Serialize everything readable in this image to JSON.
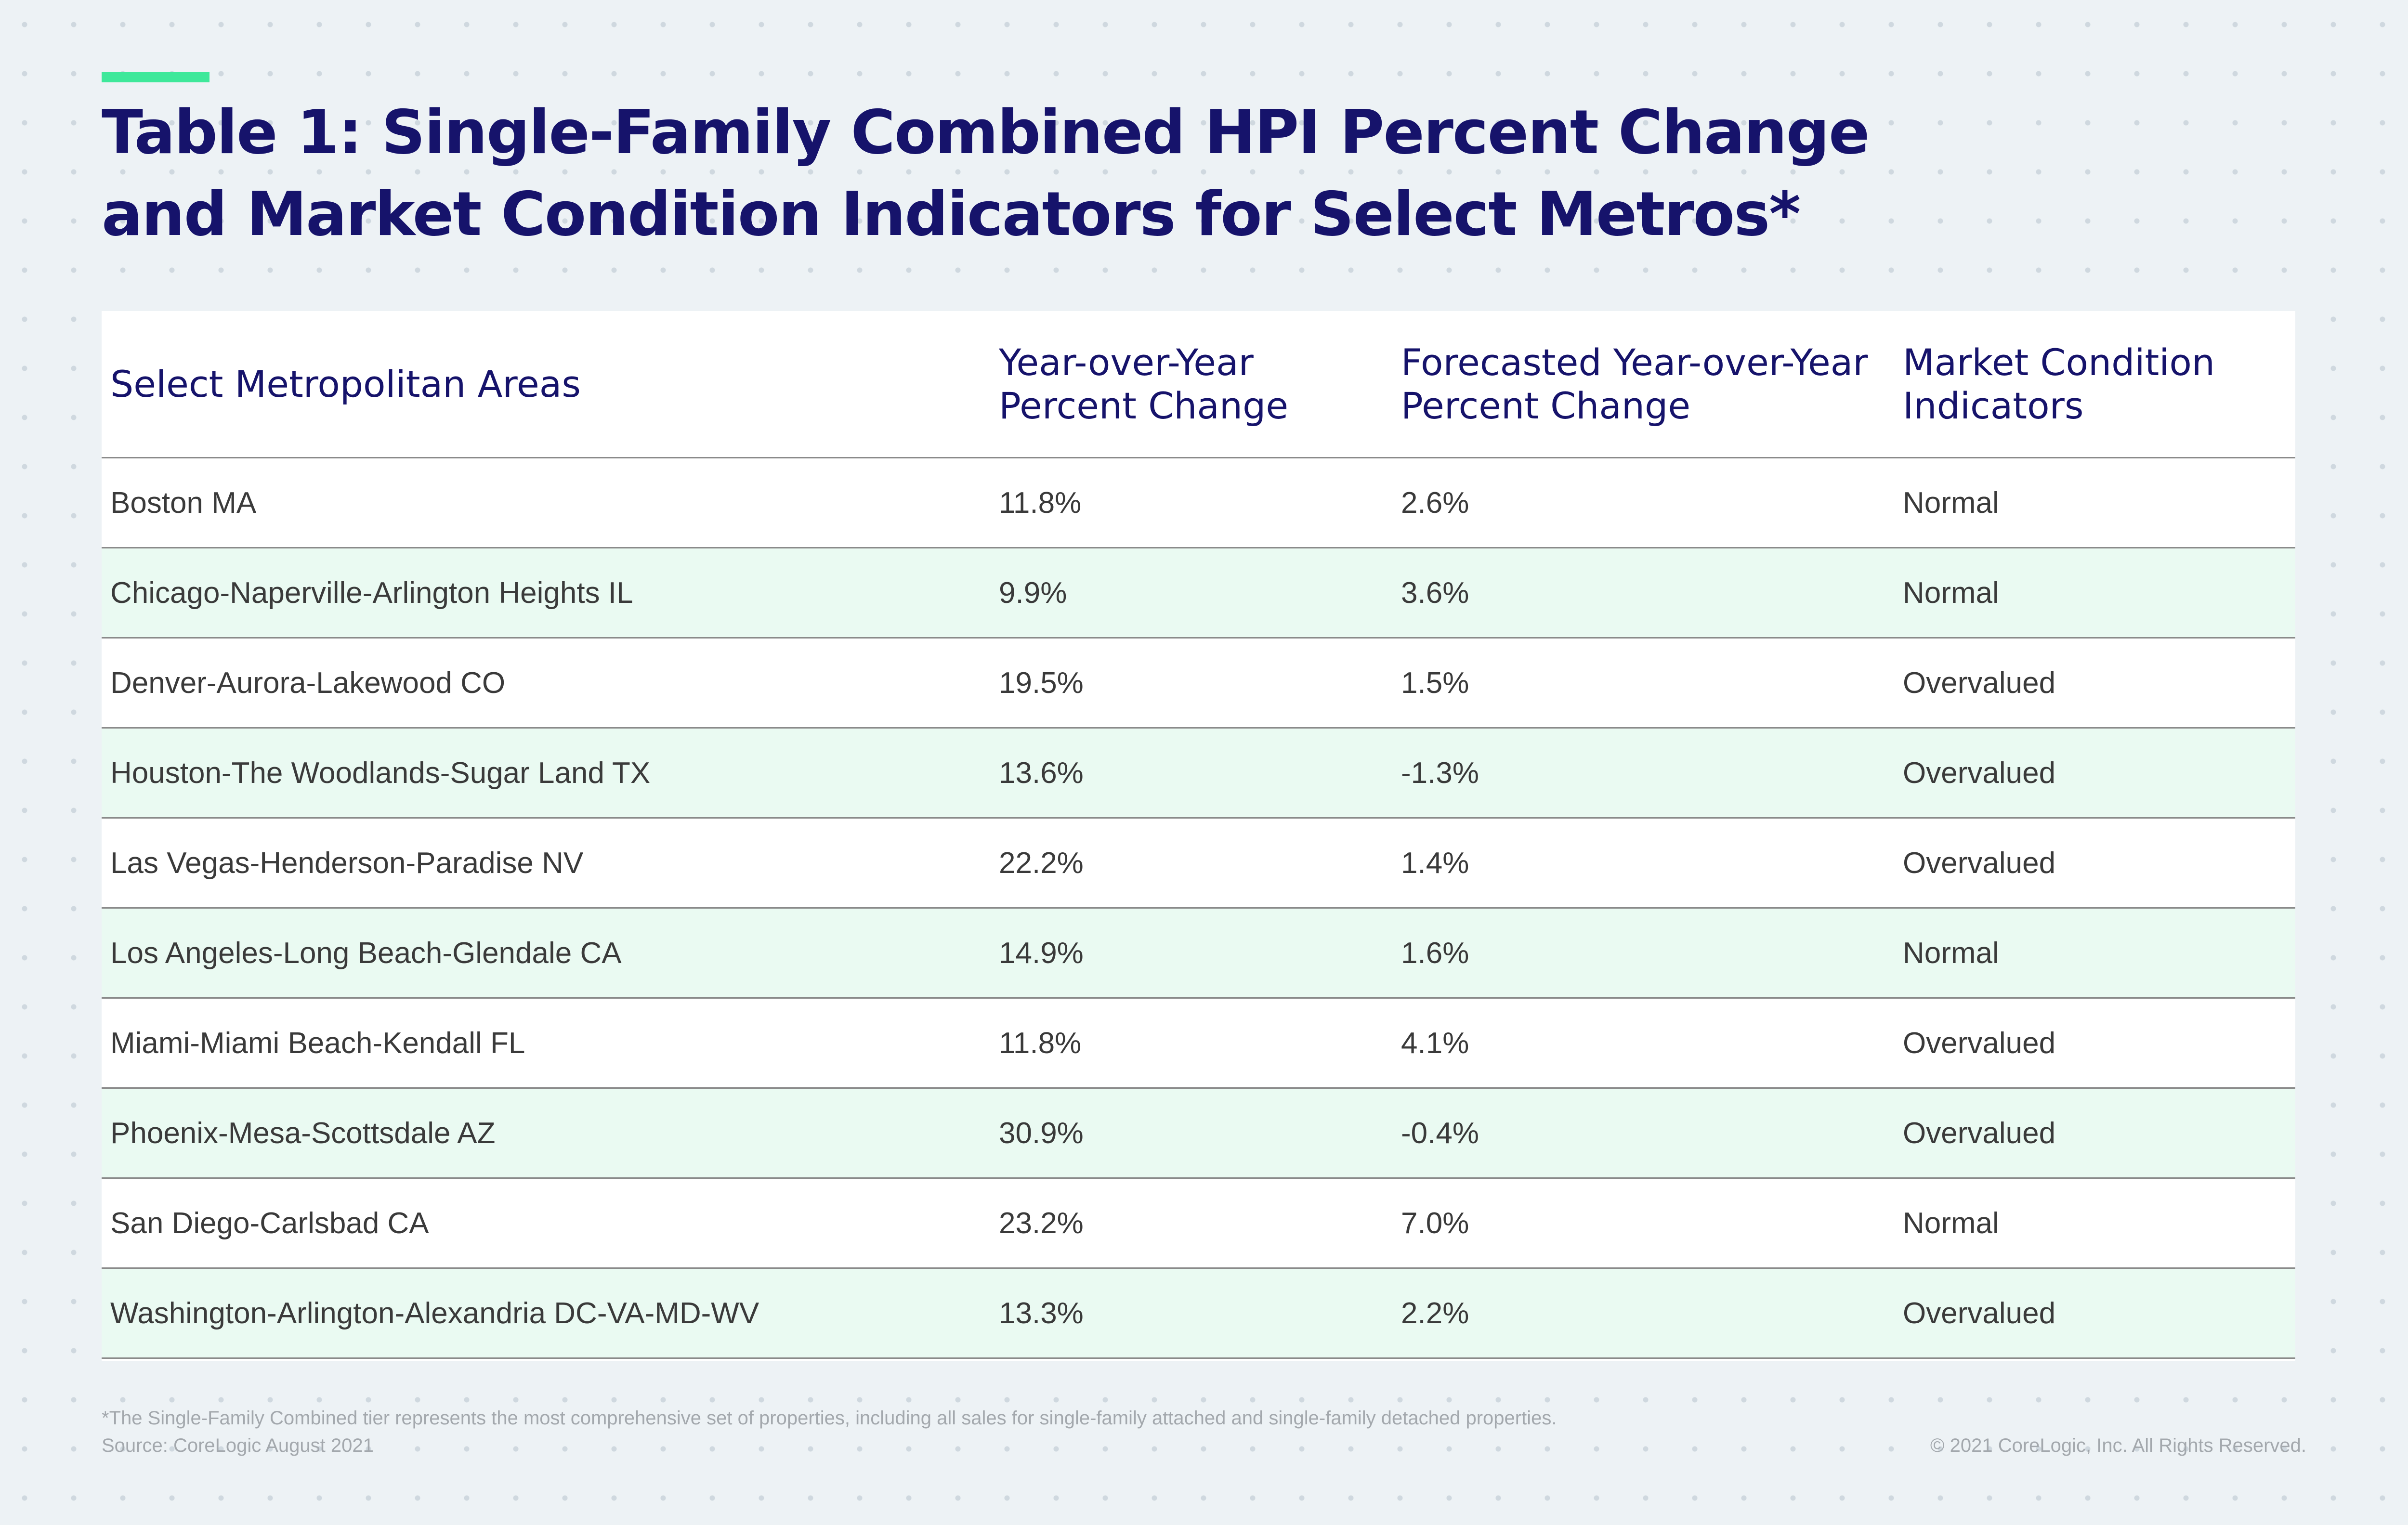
{
  "title": "Table 1: Single-Family Combined HPI Percent Change and Market Condition Indicators for Select Metros*",
  "colors": {
    "title": "#16136b",
    "accent": "#3ee89a",
    "row_alt": "#eafaf2",
    "background": "#edf2f5"
  },
  "chart_data": {
    "type": "table",
    "columns": [
      "Select Metropolitan Areas",
      "Year-over-Year Percent Change",
      "Forecasted Year-over-Year Percent Change",
      "Market Condition Indicators"
    ],
    "rows": [
      [
        "Boston MA",
        "11.8%",
        "2.6%",
        "Normal"
      ],
      [
        "Chicago-Naperville-Arlington Heights IL",
        "9.9%",
        "3.6%",
        "Normal"
      ],
      [
        "Denver-Aurora-Lakewood CO",
        "19.5%",
        "1.5%",
        "Overvalued"
      ],
      [
        "Houston-The Woodlands-Sugar Land TX",
        "13.6%",
        "-1.3%",
        "Overvalued"
      ],
      [
        "Las Vegas-Henderson-Paradise NV",
        "22.2%",
        "1.4%",
        "Overvalued"
      ],
      [
        "Los Angeles-Long Beach-Glendale CA",
        "14.9%",
        "1.6%",
        "Normal"
      ],
      [
        "Miami-Miami Beach-Kendall FL",
        "11.8%",
        "4.1%",
        "Overvalued"
      ],
      [
        "Phoenix-Mesa-Scottsdale AZ",
        "30.9%",
        "-0.4%",
        "Overvalued"
      ],
      [
        "San Diego-Carlsbad CA",
        "23.2%",
        "7.0%",
        "Normal"
      ],
      [
        "Washington-Arlington-Alexandria DC-VA-MD-WV",
        "13.3%",
        "2.2%",
        "Overvalued"
      ]
    ]
  },
  "footnote": "*The Single-Family Combined tier represents the most comprehensive set of properties, including all sales for single-family attached and single-family detached properties.",
  "source": "Source: CoreLogic August 2021",
  "copyright": "© 2021 CoreLogic, Inc. All Rights Reserved."
}
